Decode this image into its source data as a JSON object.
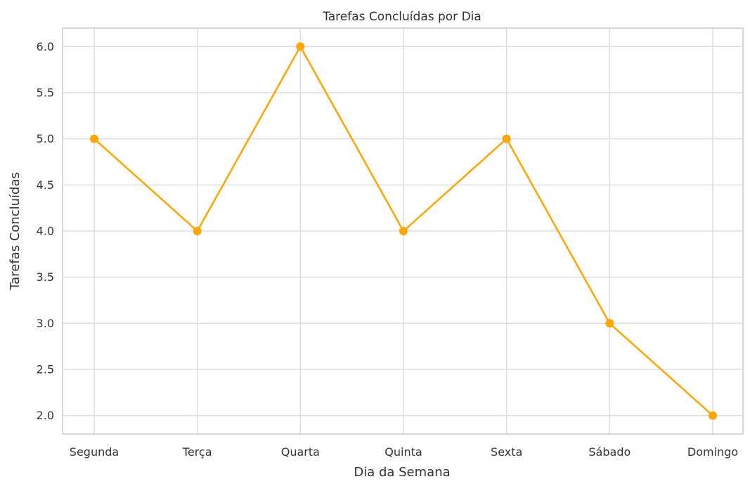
{
  "chart_data": {
    "type": "line",
    "title": "Tarefas Concluídas por Dia",
    "xlabel": "Dia da Semana",
    "ylabel": "Tarefas Concluídas",
    "categories": [
      "Segunda",
      "Terça",
      "Quarta",
      "Quinta",
      "Sexta",
      "Sábado",
      "Domingo"
    ],
    "values": [
      5,
      4,
      6,
      4,
      5,
      3,
      2
    ],
    "y_ticks": [
      "2.0",
      "2.5",
      "3.0",
      "3.5",
      "4.0",
      "4.5",
      "5.0",
      "5.5",
      "6.0"
    ],
    "ylim": [
      1.8,
      6.2
    ],
    "grid": true,
    "line_color": "#ffa500",
    "marker": "circle"
  }
}
